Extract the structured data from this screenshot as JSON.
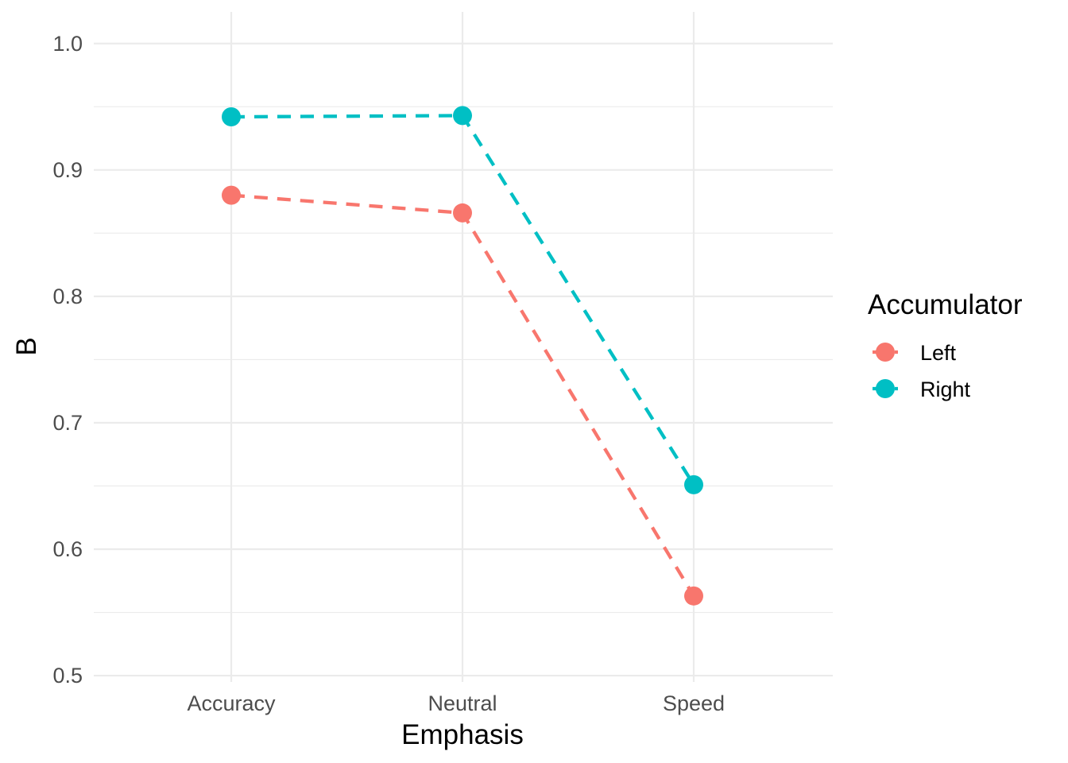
{
  "chart_data": {
    "type": "line",
    "xlabel": "Emphasis",
    "ylabel": "B",
    "categories": [
      "Accuracy",
      "Neutral",
      "Speed"
    ],
    "ylim": [
      0.495,
      1.025
    ],
    "yticks": [
      0.5,
      0.6,
      0.7,
      0.8,
      0.9,
      1.0
    ],
    "ytick_labels": [
      "0.5",
      "0.6",
      "0.7",
      "0.8",
      "0.9",
      "1.0"
    ],
    "grid": true,
    "legend": {
      "title": "Accumulator",
      "placement": "right"
    },
    "series": [
      {
        "name": "Left",
        "color": "#F8766D",
        "linestyle": "dashed",
        "values": [
          0.88,
          0.866,
          0.563
        ]
      },
      {
        "name": "Right",
        "color": "#00BFC4",
        "linestyle": "dashed",
        "values": [
          0.942,
          0.943,
          0.651
        ]
      }
    ]
  }
}
